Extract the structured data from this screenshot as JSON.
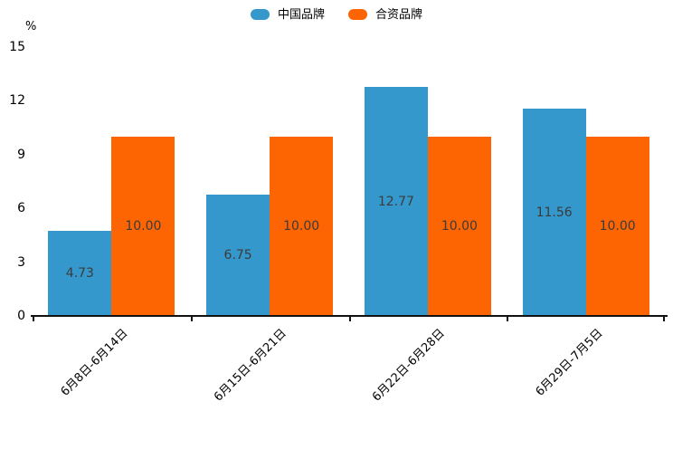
{
  "chart_data": {
    "type": "bar",
    "title": "",
    "categories": [
      "6月8日-6月14日",
      "6月15日-6月21日",
      "6月22日-6月28日",
      "6月29日-7月5日"
    ],
    "series": [
      {
        "name": "中国品牌",
        "color": "#3498cc",
        "values": [
          4.73,
          6.75,
          12.77,
          11.56
        ],
        "value_labels": [
          "4.73",
          "6.75",
          "12.77",
          "11.56"
        ]
      },
      {
        "name": "合资品牌",
        "color": "#fd6402",
        "values": [
          10.0,
          10.0,
          10.0,
          10.0
        ],
        "value_labels": [
          "10.00",
          "10.00",
          "10.00",
          "10.00"
        ]
      }
    ],
    "xlabel": "",
    "ylabel": "%",
    "yticks": [
      0,
      3,
      6,
      9,
      12,
      15
    ],
    "ylim": [
      0,
      15
    ],
    "grid": false,
    "legend_position": "top-center",
    "value_labels_inside_bars": true,
    "x_labels_rotation_deg": 45,
    "value_label_color": "#3b3b3b",
    "axis_color": "#111111",
    "background_color": "#ffffff"
  }
}
